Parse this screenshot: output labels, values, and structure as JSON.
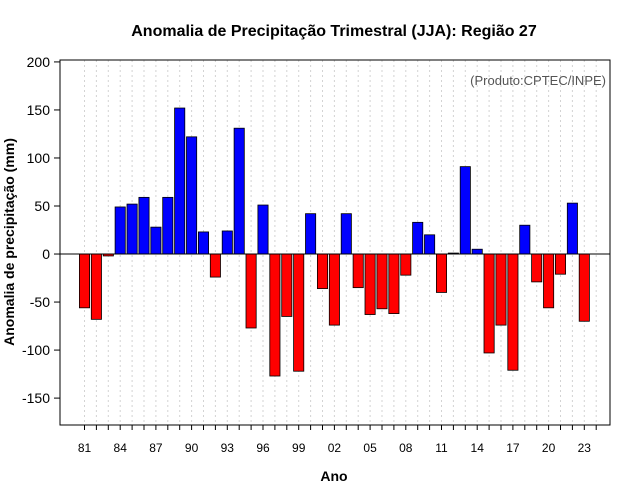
{
  "chart_data": {
    "type": "bar",
    "title": "Anomalia de Precipitação Trimestral (JJA): Região 27",
    "xlabel": "Ano",
    "ylabel": "Anomalia de precipitação (mm)",
    "credit": "(Produto:CPTEC/INPE)",
    "ylim": [
      -178,
      202
    ],
    "yticks": [
      -150,
      -100,
      -50,
      0,
      50,
      100,
      150,
      200
    ],
    "xtick_labels": [
      {
        "index": 0,
        "label": "81"
      },
      {
        "index": 3,
        "label": "84"
      },
      {
        "index": 6,
        "label": "87"
      },
      {
        "index": 9,
        "label": "90"
      },
      {
        "index": 12,
        "label": "93"
      },
      {
        "index": 15,
        "label": "96"
      },
      {
        "index": 18,
        "label": "99"
      },
      {
        "index": 21,
        "label": "02"
      },
      {
        "index": 24,
        "label": "05"
      },
      {
        "index": 27,
        "label": "08"
      },
      {
        "index": 30,
        "label": "11"
      },
      {
        "index": 33,
        "label": "14"
      },
      {
        "index": 36,
        "label": "17"
      },
      {
        "index": 39,
        "label": "20"
      },
      {
        "index": 42,
        "label": "23"
      }
    ],
    "categories": [
      "1981",
      "1982",
      "1983",
      "1984",
      "1985",
      "1986",
      "1987",
      "1988",
      "1989",
      "1990",
      "1991",
      "1992",
      "1993",
      "1994",
      "1995",
      "1996",
      "1997",
      "1998",
      "1999",
      "2000",
      "2001",
      "2002",
      "2003",
      "2004",
      "2005",
      "2006",
      "2007",
      "2008",
      "2009",
      "2010",
      "2011",
      "2012",
      "2013",
      "2014",
      "2015",
      "2016",
      "2017",
      "2018",
      "2019",
      "2020",
      "2021",
      "2022",
      "2023",
      "2024"
    ],
    "values": [
      -56,
      -68,
      -2,
      49,
      52,
      59,
      28,
      59,
      152,
      122,
      23,
      -24,
      24,
      131,
      -77,
      51,
      -127,
      -65,
      -122,
      42,
      -36,
      -74,
      42,
      -35,
      -63,
      -57,
      -62,
      -22,
      33,
      20,
      -40,
      1,
      91,
      5,
      -103,
      -74,
      -121,
      30,
      -29,
      -56,
      -21,
      53,
      -70,
      0
    ],
    "colors": {
      "positive": "#0000ff",
      "negative": "#ff0000",
      "grid": "#d3d3d3",
      "axis": "#000000"
    }
  }
}
